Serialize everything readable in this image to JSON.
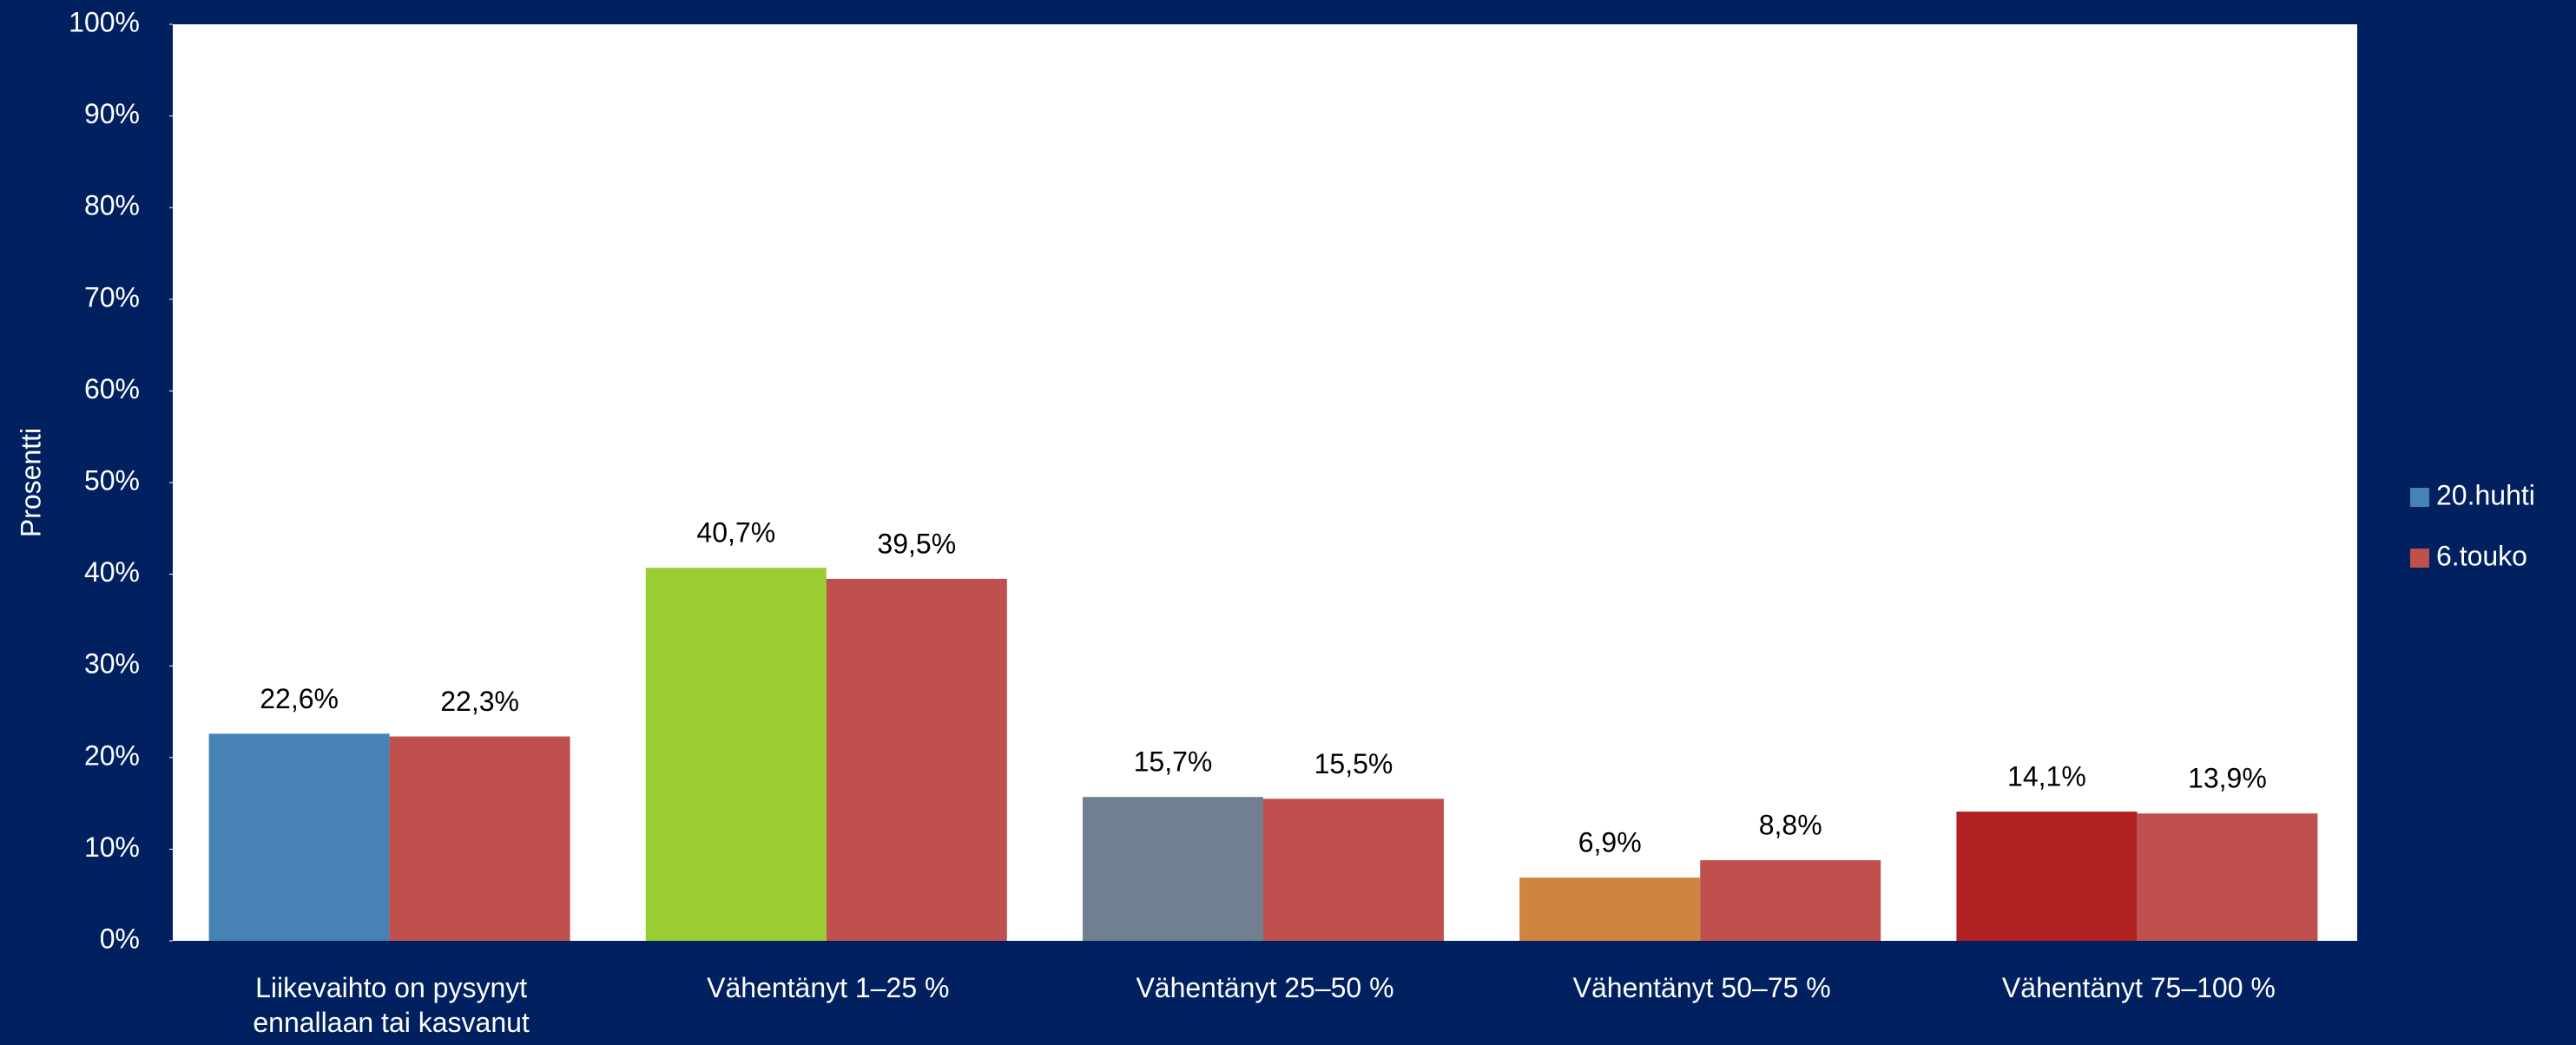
{
  "chart_data": {
    "type": "bar",
    "y_label": "Prosentti",
    "categories": [
      "Liikevaihto on pysynyt ennallaan tai kasvanut",
      "Vähentänyt 1–25 %",
      "Vähentänyt 25–50 %",
      "Vähentänyt 50–75 %",
      "Vähentänyt 75–100 %"
    ],
    "series": [
      {
        "name": "20.huhti",
        "color": "#4682b4",
        "colors": [
          "#4682b4",
          "#9acd32",
          "#708090",
          "#cd853f",
          "#b22222"
        ],
        "values": [
          22.6,
          40.7,
          15.7,
          6.9,
          14.1
        ],
        "value_labels": [
          "22,6%",
          "40,7%",
          "15,7%",
          "6,9%",
          "14,1%"
        ]
      },
      {
        "name": "6.touko",
        "color": "#c0504d",
        "values": [
          22.3,
          39.5,
          15.5,
          8.8,
          13.9
        ],
        "value_labels": [
          "22,3%",
          "39,5%",
          "15,5%",
          "8,8%",
          "13,9%"
        ]
      }
    ],
    "ylim": [
      0,
      100
    ],
    "yticks": [
      {
        "value": 0,
        "label": "0%"
      },
      {
        "value": 10,
        "label": "10%"
      },
      {
        "value": 20,
        "label": "20%"
      },
      {
        "value": 30,
        "label": "30%"
      },
      {
        "value": 40,
        "label": "40%"
      },
      {
        "value": 50,
        "label": "50%"
      },
      {
        "value": 60,
        "label": "60%"
      },
      {
        "value": 70,
        "label": "70%"
      },
      {
        "value": 80,
        "label": "80%"
      },
      {
        "value": 90,
        "label": "90%"
      },
      {
        "value": 100,
        "label": "100%"
      }
    ],
    "legend": "right"
  }
}
